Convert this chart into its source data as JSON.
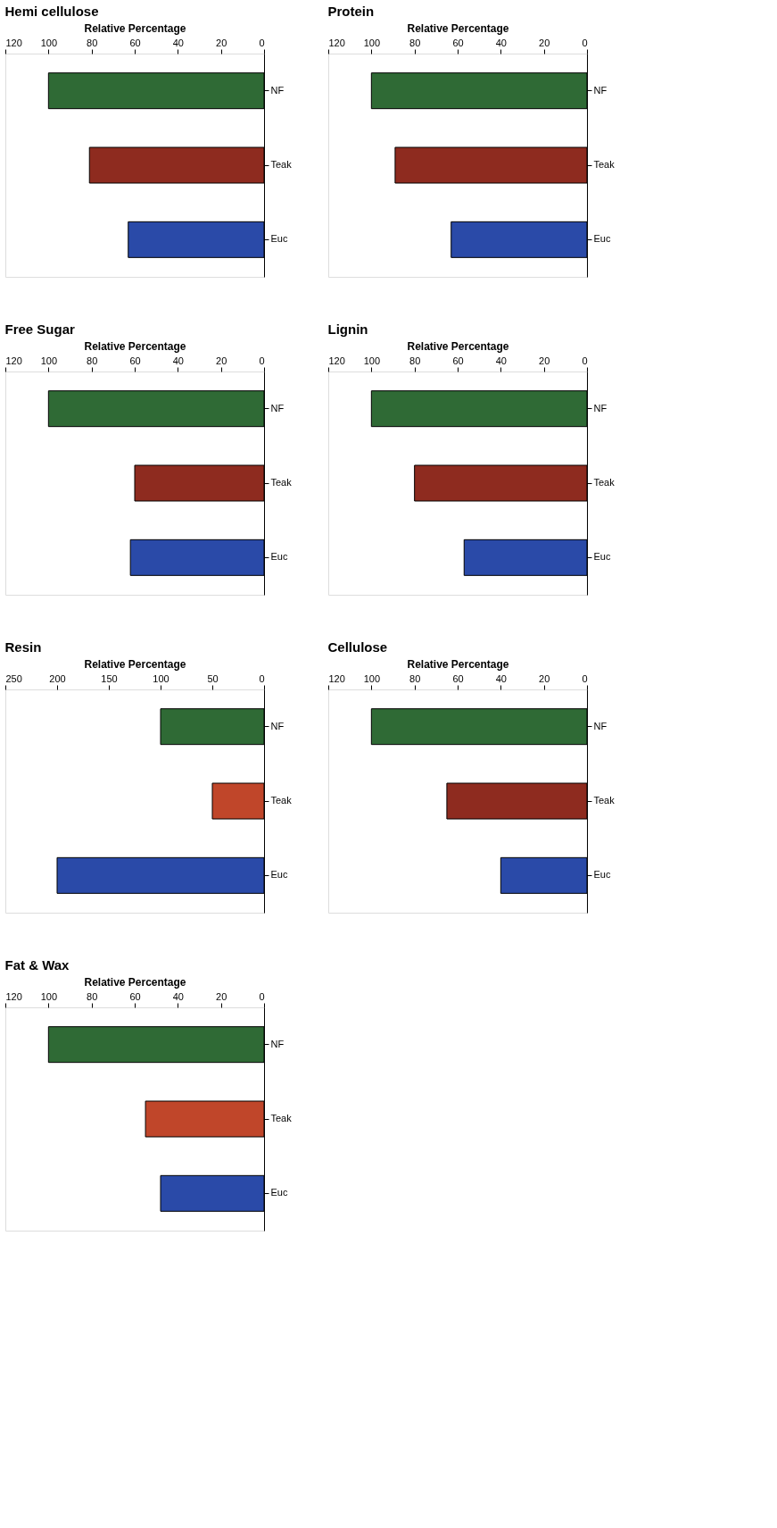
{
  "chart_data": [
    {
      "type": "bar",
      "orientation": "horizontal",
      "title": "Hemi cellulose",
      "xlabel": "Relative Percentage",
      "categories": [
        "NF",
        "Teak",
        "Euc"
      ],
      "values": [
        100,
        81,
        63
      ],
      "colors": [
        "#2f6a35",
        "#8e2b1f",
        "#2a4aa8"
      ],
      "xlim": [
        120,
        0
      ],
      "xticks": [
        120,
        100,
        80,
        60,
        40,
        20,
        0
      ],
      "grid": false
    },
    {
      "type": "bar",
      "orientation": "horizontal",
      "title": "Protein",
      "xlabel": "Relative Percentage",
      "categories": [
        "NF",
        "Teak",
        "Euc"
      ],
      "values": [
        100,
        89,
        63
      ],
      "colors": [
        "#2f6a35",
        "#8e2b1f",
        "#2a4aa8"
      ],
      "xlim": [
        120,
        0
      ],
      "xticks": [
        120,
        100,
        80,
        60,
        40,
        20,
        0
      ],
      "grid": false
    },
    {
      "type": "bar",
      "orientation": "horizontal",
      "title": "Free Sugar",
      "xlabel": "Relative Percentage",
      "categories": [
        "NF",
        "Teak",
        "Euc"
      ],
      "values": [
        100,
        60,
        62
      ],
      "colors": [
        "#2f6a35",
        "#8e2b1f",
        "#2a4aa8"
      ],
      "xlim": [
        120,
        0
      ],
      "xticks": [
        120,
        100,
        80,
        60,
        40,
        20,
        0
      ],
      "grid": false
    },
    {
      "type": "bar",
      "orientation": "horizontal",
      "title": "Lignin",
      "xlabel": "Relative Percentage",
      "categories": [
        "NF",
        "Teak",
        "Euc"
      ],
      "values": [
        100,
        80,
        57
      ],
      "colors": [
        "#2f6a35",
        "#8e2b1f",
        "#2a4aa8"
      ],
      "xlim": [
        120,
        0
      ],
      "xticks": [
        120,
        100,
        80,
        60,
        40,
        20,
        0
      ],
      "grid": false
    },
    {
      "type": "bar",
      "orientation": "horizontal",
      "title": "Resin",
      "xlabel": "Relative Percentage",
      "categories": [
        "NF",
        "Teak",
        "Euc"
      ],
      "values": [
        100,
        50,
        200
      ],
      "colors": [
        "#2f6a35",
        "#c0462a",
        "#2a4aa8"
      ],
      "xlim": [
        250,
        0
      ],
      "xticks": [
        250,
        200,
        150,
        100,
        50,
        0
      ],
      "grid": false
    },
    {
      "type": "bar",
      "orientation": "horizontal",
      "title": "Cellulose",
      "xlabel": "Relative Percentage",
      "categories": [
        "NF",
        "Teak",
        "Euc"
      ],
      "values": [
        100,
        65,
        40
      ],
      "colors": [
        "#2f6a35",
        "#8e2b1f",
        "#2a4aa8"
      ],
      "xlim": [
        120,
        0
      ],
      "xticks": [
        120,
        100,
        80,
        60,
        40,
        20,
        0
      ],
      "grid": false
    },
    {
      "type": "bar",
      "orientation": "horizontal",
      "title": "Fat & Wax",
      "xlabel": "Relative Percentage",
      "categories": [
        "NF",
        "Teak",
        "Euc"
      ],
      "values": [
        100,
        55,
        48
      ],
      "colors": [
        "#2f6a35",
        "#c0462a",
        "#2a4aa8"
      ],
      "xlim": [
        120,
        0
      ],
      "xticks": [
        120,
        100,
        80,
        60,
        40,
        20,
        0
      ],
      "grid": false
    }
  ]
}
